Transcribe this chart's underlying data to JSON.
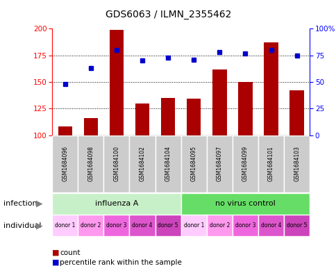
{
  "title": "GDS6063 / ILMN_2355462",
  "samples": [
    "GSM1684096",
    "GSM1684098",
    "GSM1684100",
    "GSM1684102",
    "GSM1684104",
    "GSM1684095",
    "GSM1684097",
    "GSM1684099",
    "GSM1684101",
    "GSM1684103"
  ],
  "counts": [
    108,
    116,
    199,
    130,
    135,
    134,
    162,
    150,
    187,
    142
  ],
  "percentiles": [
    48,
    63,
    80,
    70,
    73,
    71,
    78,
    77,
    80,
    75
  ],
  "ylim_left": [
    100,
    200
  ],
  "ylim_right": [
    0,
    100
  ],
  "yticks_left": [
    100,
    125,
    150,
    175,
    200
  ],
  "yticks_right": [
    0,
    25,
    50,
    75,
    100
  ],
  "yticklabels_right": [
    "0",
    "25",
    "50",
    "75",
    "100%"
  ],
  "infection_groups": [
    {
      "label": "influenza A",
      "start": 0,
      "end": 5,
      "color": "#C8F0C8"
    },
    {
      "label": "no virus control",
      "start": 5,
      "end": 10,
      "color": "#66DD66"
    }
  ],
  "individual_labels": [
    "donor 1",
    "donor 2",
    "donor 3",
    "donor 4",
    "donor 5",
    "donor 1",
    "donor 2",
    "donor 3",
    "donor 4",
    "donor 5"
  ],
  "bar_color": "#AA0000",
  "dot_color": "#0000CC",
  "bar_width": 0.55,
  "sample_bg_color": "#CCCCCC",
  "legend_items": [
    "count",
    "percentile rank within the sample"
  ],
  "legend_colors": [
    "#AA0000",
    "#0000CC"
  ],
  "donor_colors": {
    "donor 1": "#FFCCFF",
    "donor 2": "#FF99EE",
    "donor 3": "#EE66DD",
    "donor 4": "#DD55CC",
    "donor 5": "#CC44BB"
  }
}
